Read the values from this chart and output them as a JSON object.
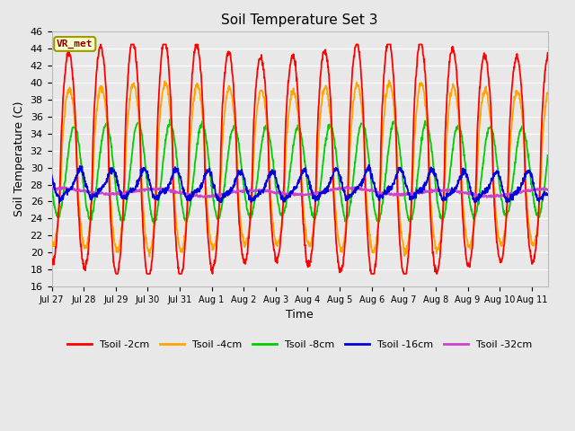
{
  "title": "Soil Temperature Set 3",
  "xlabel": "Time",
  "ylabel": "Soil Temperature (C)",
  "ylim": [
    16,
    46
  ],
  "yticks": [
    16,
    18,
    20,
    22,
    24,
    26,
    28,
    30,
    32,
    34,
    36,
    38,
    40,
    42,
    44,
    46
  ],
  "bg_color": "#e8e8e8",
  "plot_bg_color": "#e8e8e8",
  "grid_color": "#ffffff",
  "annotation_text": "VR_met",
  "annotation_bg": "#ffffcc",
  "annotation_border": "#999900",
  "annotation_text_color": "#8b0000",
  "series_colors": {
    "Tsoil -2cm": "#ff0000",
    "Tsoil -4cm": "#ffa500",
    "Tsoil -8cm": "#00cc00",
    "Tsoil -16cm": "#0000dd",
    "Tsoil -32cm": "#cc44cc"
  },
  "tick_labels": [
    "Jul 27",
    "Jul 28",
    "Jul 29",
    "Jul 30",
    "Jul 31",
    "Aug 1",
    "Aug 2",
    "Aug 3",
    "Aug 4",
    "Aug 5",
    "Aug 6",
    "Aug 7",
    "Aug 8",
    "Aug 9",
    "Aug 10",
    "Aug 11"
  ],
  "xlim": [
    0,
    15.5
  ],
  "n_days": 15.5,
  "figsize": [
    6.4,
    4.8
  ],
  "dpi": 100
}
